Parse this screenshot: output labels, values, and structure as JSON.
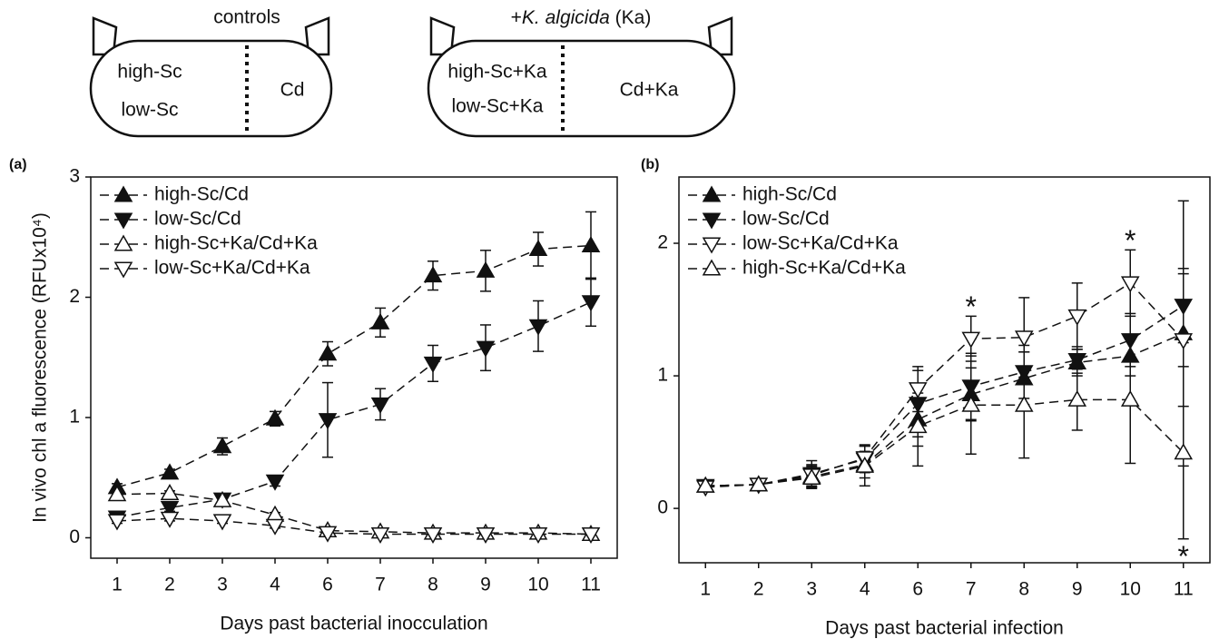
{
  "diagram": {
    "left_title": "controls",
    "left_items": [
      "high-Sc",
      "low-Sc"
    ],
    "left_right": "Cd",
    "right_title": [
      "+",
      "K. algicida",
      " (Ka)"
    ],
    "right_items": [
      "high-Sc+Ka",
      "low-Sc+Ka"
    ],
    "right_right": "Cd+Ka"
  },
  "chart_data": [
    {
      "type": "line",
      "panel_label": "(a)",
      "xlabel": "Days past bacterial inocculation",
      "ylabel": "In vivo chl a fluorescence (RFUx10⁴)",
      "categories": [
        "1",
        "2",
        "3",
        "4",
        "6",
        "7",
        "8",
        "9",
        "10",
        "11"
      ],
      "ylim": [
        -0.17,
        3
      ],
      "yticks": [
        0,
        1,
        2,
        3
      ],
      "legend": "upper left",
      "linestyle": "dashed",
      "series": [
        {
          "name": "high-Sc/Cd",
          "color": "#111111",
          "marker": "triangle-up",
          "filled": true,
          "values": [
            0.42,
            0.54,
            0.76,
            0.99,
            1.53,
            1.79,
            2.18,
            2.22,
            2.4,
            2.43
          ],
          "errors": [
            0.03,
            0.03,
            0.07,
            0.06,
            0.1,
            0.12,
            0.12,
            0.17,
            0.14,
            0.28
          ]
        },
        {
          "name": "low-Sc/Cd",
          "color": "#111111",
          "marker": "triangle-down",
          "filled": true,
          "values": [
            0.17,
            0.25,
            0.32,
            0.47,
            0.98,
            1.11,
            1.45,
            1.58,
            1.76,
            1.96
          ],
          "errors": [
            0.03,
            0.03,
            0.04,
            0.04,
            0.31,
            0.13,
            0.15,
            0.19,
            0.21,
            0.2
          ]
        },
        {
          "name": "high-Sc+Ka/Cd+Ka",
          "color": "#111111",
          "marker": "triangle-up",
          "filled": false,
          "values": [
            0.36,
            0.37,
            0.31,
            0.19,
            0.06,
            0.05,
            0.04,
            0.04,
            0.04,
            0.03
          ],
          "errors": [
            0.02,
            0.02,
            0.02,
            0.02,
            0.02,
            0.02,
            0.02,
            0.02,
            0.02,
            0.02
          ]
        },
        {
          "name": "low-Sc+Ka/Cd+Ka",
          "color": "#111111",
          "marker": "triangle-down",
          "filled": false,
          "values": [
            0.14,
            0.16,
            0.14,
            0.1,
            0.04,
            0.03,
            0.03,
            0.03,
            0.03,
            0.03
          ],
          "errors": [
            0.02,
            0.02,
            0.02,
            0.02,
            0.02,
            0.02,
            0.02,
            0.02,
            0.02,
            0.02
          ]
        }
      ]
    },
    {
      "type": "line",
      "panel_label": "(b)",
      "xlabel": "Days past bacterial infection",
      "categories": [
        "1",
        "2",
        "3",
        "4",
        "6",
        "7",
        "8",
        "9",
        "10",
        "11"
      ],
      "ylim": [
        -0.41,
        2.5
      ],
      "yticks": [
        0,
        1,
        2
      ],
      "legend": "upper left",
      "linestyle": "dashed",
      "series": [
        {
          "name": "high-Sc/Cd",
          "color": "#111111",
          "marker": "triangle-up",
          "filled": true,
          "values": [
            0.17,
            0.18,
            0.24,
            0.33,
            0.67,
            0.86,
            0.98,
            1.1,
            1.15,
            1.32
          ],
          "errors": [
            0.02,
            0.03,
            0.08,
            0.1,
            0.2,
            0.2,
            0.2,
            0.1,
            0.15,
            1.0
          ]
        },
        {
          "name": "low-Sc/Cd",
          "color": "#111111",
          "marker": "triangle-down",
          "filled": true,
          "values": [
            0.17,
            0.18,
            0.26,
            0.37,
            0.79,
            0.92,
            1.03,
            1.12,
            1.27,
            1.53
          ],
          "errors": [
            0.02,
            0.03,
            0.1,
            0.1,
            0.25,
            0.25,
            0.2,
            0.1,
            0.2,
            0.28
          ]
        },
        {
          "name": "low-Sc+Ka/Cd+Ka",
          "color": "#111111",
          "marker": "triangle-down",
          "filled": false,
          "values": [
            0.16,
            0.18,
            0.25,
            0.38,
            0.9,
            1.28,
            1.29,
            1.45,
            1.7,
            1.27
          ],
          "errors": [
            0.02,
            0.03,
            0.08,
            0.1,
            0.17,
            0.17,
            0.3,
            0.25,
            0.25,
            0.5
          ]
        },
        {
          "name": "high-Sc+Ka/Cd+Ka",
          "color": "#111111",
          "marker": "triangle-up",
          "filled": false,
          "values": [
            0.17,
            0.18,
            0.23,
            0.32,
            0.62,
            0.78,
            0.78,
            0.82,
            0.82,
            0.42
          ],
          "errors": [
            0.02,
            0.03,
            0.08,
            0.15,
            0.3,
            0.37,
            0.4,
            0.23,
            0.48,
            0.65
          ]
        }
      ],
      "annotations": [
        {
          "text": "*",
          "category": "7",
          "position": "above"
        },
        {
          "text": "*",
          "category": "10",
          "position": "above"
        },
        {
          "text": "*",
          "category": "11",
          "position": "below"
        }
      ]
    }
  ]
}
